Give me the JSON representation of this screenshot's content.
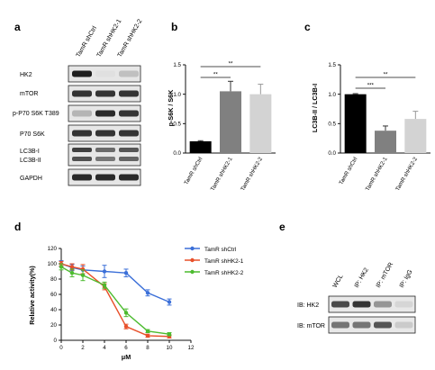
{
  "figure": {
    "panel_letters": [
      "a",
      "b",
      "c",
      "d",
      "e"
    ]
  },
  "panel_a": {
    "lane_labels": [
      "TamR shCtrl",
      "TamR shHK2-1",
      "TamR shHK2-2"
    ],
    "rows": [
      {
        "label": "HK2",
        "intensity": [
          0.95,
          0.05,
          0.2
        ]
      },
      {
        "label": "mTOR",
        "intensity": [
          0.85,
          0.85,
          0.85
        ]
      },
      {
        "label": "p-P70 S6K T389",
        "intensity": [
          0.25,
          0.9,
          0.85
        ]
      },
      {
        "label": "P70 S6K",
        "intensity": [
          0.85,
          0.85,
          0.85
        ]
      },
      {
        "label": "LC3B-I",
        "label2": "LC3B-II",
        "intensity": [
          0.8,
          0.6,
          0.7
        ]
      },
      {
        "label": "GAPDH",
        "intensity": [
          0.9,
          0.9,
          0.9
        ]
      }
    ]
  },
  "chart_data": [
    {
      "panel": "b",
      "type": "bar",
      "categories": [
        "TamR shCtrl",
        "TamR shHK2-1",
        "TamR shHK2-2"
      ],
      "values": [
        0.2,
        1.05,
        1.0
      ],
      "errors": [
        0.01,
        0.17,
        0.17
      ],
      "ylabel": "p-S6K / S6K",
      "ylim": [
        0,
        1.5
      ],
      "yticks": [
        "0.0",
        "0.5",
        "1.0",
        "1.5"
      ],
      "bar_colors": [
        "#000000",
        "#808080",
        "#d3d3d3"
      ],
      "significance": [
        "**",
        "**"
      ]
    },
    {
      "panel": "c",
      "type": "bar",
      "categories": [
        "TamR shCtrl",
        "TamR shHK2-1",
        "TamR shHK2-2"
      ],
      "values": [
        1.0,
        0.38,
        0.58
      ],
      "errors": [
        0.01,
        0.08,
        0.13
      ],
      "ylabel": "LC3B-II / LC3B-I",
      "ylim": [
        0,
        1.5
      ],
      "yticks": [
        "0.0",
        "0.5",
        "1.0",
        "1.5"
      ],
      "bar_colors": [
        "#000000",
        "#808080",
        "#d3d3d3"
      ],
      "significance": [
        "***",
        "**"
      ]
    },
    {
      "panel": "d",
      "type": "line",
      "x": [
        0,
        1,
        2,
        4,
        6,
        8,
        10
      ],
      "xlabel": "μM",
      "ylabel": "Relative activity(%)",
      "ylim": [
        0,
        120
      ],
      "xlim": [
        0,
        12
      ],
      "xticks": [
        "0",
        "2",
        "4",
        "6",
        "8",
        "10",
        "12"
      ],
      "yticks": [
        "0",
        "20",
        "40",
        "60",
        "80",
        "100",
        "120"
      ],
      "legend_position": "top-right",
      "series": [
        {
          "name": "TamR shCtrl",
          "color": "#3b6fd8",
          "values": [
            100,
            95,
            92,
            90,
            88,
            62,
            50
          ],
          "errors": [
            4,
            4,
            5,
            8,
            5,
            4,
            4
          ]
        },
        {
          "name": "TamR shHK2-1",
          "color": "#e8502a",
          "values": [
            100,
            96,
            93,
            70,
            18,
            6,
            5
          ],
          "errors": [
            3,
            4,
            6,
            4,
            3,
            2,
            2
          ]
        },
        {
          "name": "TamR shHK2-2",
          "color": "#4cbb2f",
          "values": [
            96,
            88,
            85,
            72,
            36,
            12,
            8
          ],
          "errors": [
            4,
            5,
            7,
            4,
            5,
            2,
            2
          ]
        }
      ]
    }
  ],
  "panel_e": {
    "lane_labels": [
      "WCL",
      "IP: HK2",
      "IP: mTOR",
      "IP: IgG"
    ],
    "rows": [
      {
        "label": "IB: HK2",
        "intensity": [
          0.75,
          0.85,
          0.4,
          0.1
        ]
      },
      {
        "label": "IB: mTOR",
        "intensity": [
          0.55,
          0.55,
          0.7,
          0.15
        ]
      }
    ]
  }
}
